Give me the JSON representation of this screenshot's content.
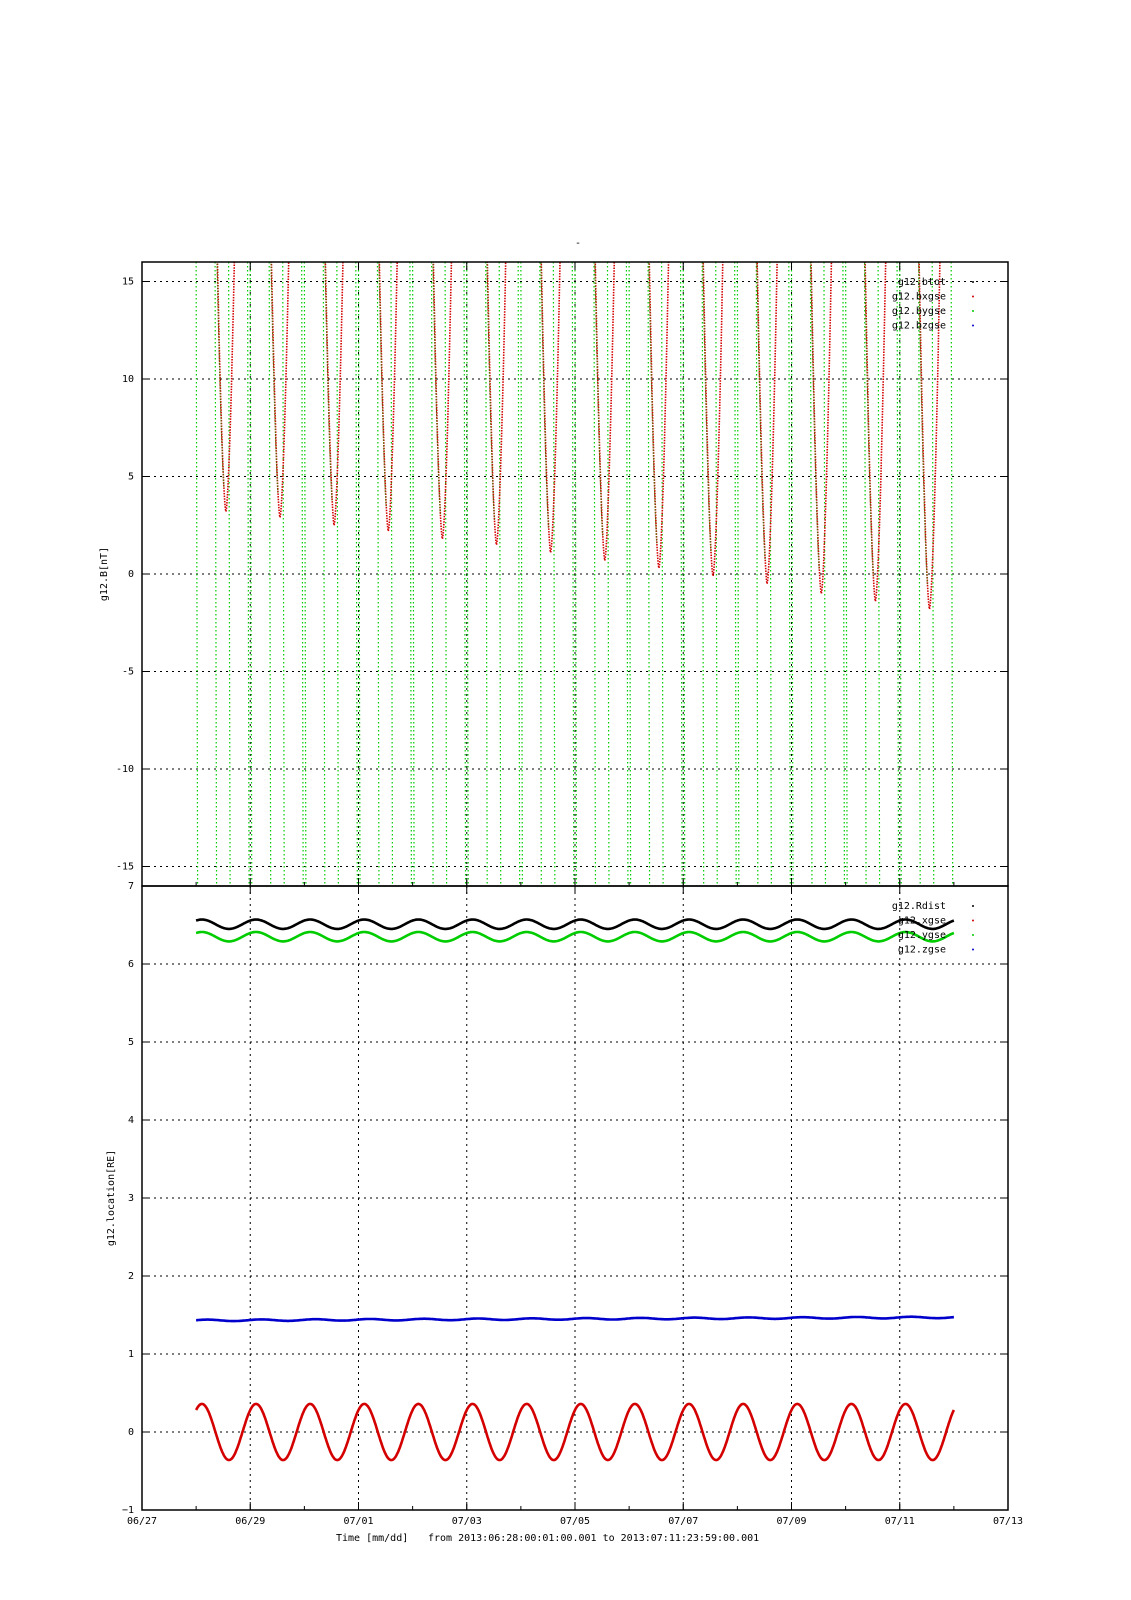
{
  "figure": {
    "title": "-",
    "footer": {
      "xlabel": "Time [mm/dd]",
      "range_text": "from 2013:06:28:00:01:00.001  to  2013:07:11:23:59:00.001"
    }
  },
  "colors": {
    "black": "#000000",
    "red": "#d40000",
    "green": "#00cc00",
    "blue": "#0000cc",
    "grid": "#000000"
  },
  "chart_data": [
    {
      "type": "scatter",
      "panel": "top",
      "ylabel": "g12.B[nT]",
      "xlabel": "",
      "ylim": [
        -16,
        16
      ],
      "yticks": [
        15,
        10,
        5,
        0,
        -5,
        -10,
        -15
      ],
      "ytick_labels": [
        "15",
        "10",
        "5",
        "0",
        "-5",
        "-10",
        "-15"
      ],
      "xlim": [
        "06/27",
        "07/13"
      ],
      "xticks": [
        "06/27",
        "06/29",
        "07/01",
        "07/03",
        "07/05",
        "07/07",
        "07/09",
        "07/11",
        "07/13"
      ],
      "xtick_labels": [
        "",
        "",
        "",
        "",
        "",
        "",
        "",
        "",
        ""
      ],
      "grid": true,
      "legend_placement": "top-right",
      "series": [
        {
          "name": "g12.btot",
          "color": "#000000",
          "pattern": "off-scale",
          "values": []
        },
        {
          "name": "g12.bxgse",
          "color": "#d40000",
          "pattern": "daily-dip",
          "dip_minima": [
            {
              "x": "06/28",
              "y": 3.2
            },
            {
              "x": "06/29",
              "y": 2.9
            },
            {
              "x": "06/30",
              "y": 2.5
            },
            {
              "x": "07/01",
              "y": 2.2
            },
            {
              "x": "07/02",
              "y": 1.8
            },
            {
              "x": "07/03",
              "y": 1.5
            },
            {
              "x": "07/04",
              "y": 1.1
            },
            {
              "x": "07/05",
              "y": 0.7
            },
            {
              "x": "07/06",
              "y": 0.3
            },
            {
              "x": "07/07",
              "y": -0.1
            },
            {
              "x": "07/08",
              "y": -0.5
            },
            {
              "x": "07/09",
              "y": -1.0
            },
            {
              "x": "07/10",
              "y": -1.4
            },
            {
              "x": "07/11",
              "y": -1.8
            }
          ]
        },
        {
          "name": "g12.bygse",
          "color": "#00cc00",
          "pattern": "daily-crossings",
          "values": []
        },
        {
          "name": "g12.bzgse",
          "color": "#0000cc",
          "pattern": "off-scale",
          "values": []
        }
      ]
    },
    {
      "type": "scatter",
      "panel": "bottom",
      "ylabel": "g12.location[RE]",
      "xlabel": "Time [mm/dd]",
      "ylim": [
        -1,
        7
      ],
      "yticks": [
        7,
        6,
        5,
        4,
        3,
        2,
        1,
        0,
        -1
      ],
      "ytick_labels": [
        "7",
        "6",
        "5",
        "4",
        "3",
        "2",
        "1",
        "0",
        "−1"
      ],
      "xlim": [
        "06/27",
        "07/13"
      ],
      "xticks": [
        "06/27",
        "06/29",
        "07/01",
        "07/03",
        "07/05",
        "07/07",
        "07/09",
        "07/11",
        "07/13"
      ],
      "xtick_labels": [
        "06/27",
        "06/29",
        "07/01",
        "07/03",
        "07/05",
        "07/07",
        "07/09",
        "07/11",
        "07/13"
      ],
      "grid": true,
      "legend_placement": "top-right",
      "series": [
        {
          "name": "g12.Rdist",
          "color": "#000000",
          "mean": 6.51,
          "amplitude": 0.06,
          "period_days": 1
        },
        {
          "name": "g12.xgse",
          "color": "#d40000",
          "mean": 0.0,
          "amplitude": 0.36,
          "period_days": 1
        },
        {
          "name": "g12.ygse",
          "color": "#00cc00",
          "mean": 6.35,
          "amplitude": 0.06,
          "period_days": 1
        },
        {
          "name": "g12.zgse",
          "color": "#0000cc",
          "start": 1.43,
          "end": 1.47,
          "amplitude": 0.01,
          "period_days": 1
        }
      ]
    }
  ]
}
